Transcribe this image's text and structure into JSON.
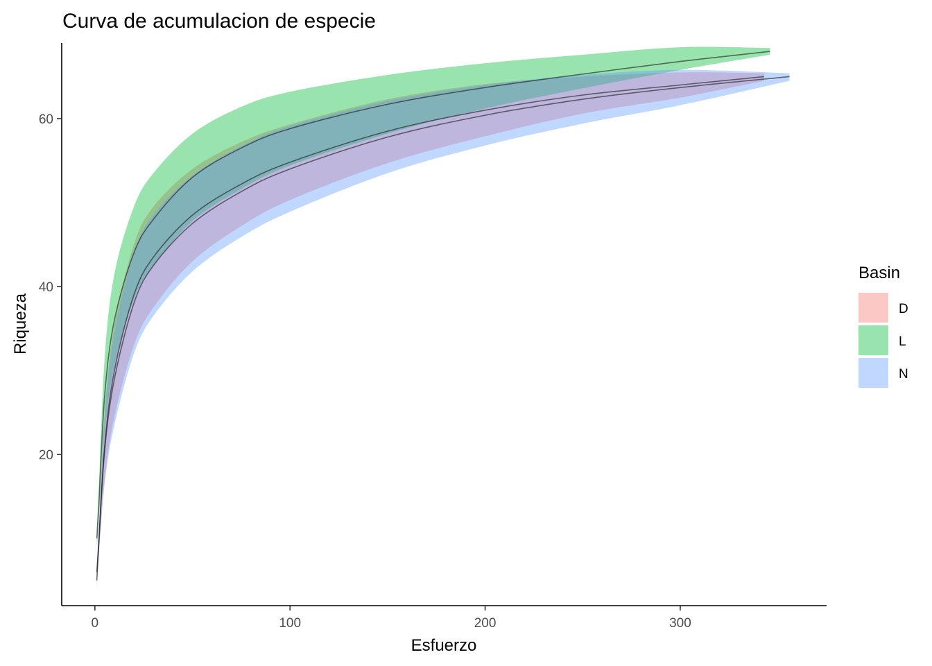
{
  "chart_data": {
    "type": "area",
    "title": "Curva de acumulacion de especie",
    "xlabel": "Esfuerzo",
    "ylabel": "Riqueza",
    "xlim": [
      -17,
      375
    ],
    "ylim": [
      2,
      69
    ],
    "xticks": [
      0,
      100,
      200,
      300
    ],
    "yticks": [
      20,
      40,
      60
    ],
    "grid": false,
    "legend": {
      "title": "Basin",
      "position": "right"
    },
    "series": [
      {
        "name": "D",
        "color": "#F8766D",
        "x": [
          1,
          2,
          5,
          10,
          20,
          30,
          50,
          75,
          100,
          150,
          200,
          250,
          300,
          343
        ],
        "y": [
          5,
          9.5,
          21,
          30,
          39,
          43.5,
          48.5,
          52.2,
          54.8,
          58.5,
          61,
          62.8,
          64,
          65
        ],
        "lower": [
          4,
          8,
          17,
          24.5,
          33,
          37.5,
          43,
          47.2,
          50.3,
          54.7,
          57.9,
          60.6,
          62.5,
          64.5
        ],
        "upper": [
          6,
          11,
          25,
          35.5,
          45,
          49.5,
          54,
          57.2,
          59.3,
          62.3,
          64.1,
          65,
          65.5,
          65.4
        ]
      },
      {
        "name": "L",
        "color": "#00BA38",
        "x": [
          1,
          2,
          5,
          10,
          20,
          30,
          50,
          75,
          100,
          150,
          200,
          250,
          300,
          346
        ],
        "y": [
          10,
          14,
          27,
          36,
          44,
          48,
          53,
          56.5,
          58.8,
          61.7,
          63.7,
          65.3,
          66.8,
          68
        ],
        "lower": [
          9,
          12,
          22.5,
          30.5,
          38.5,
          42.5,
          47.8,
          51.6,
          54.4,
          58.2,
          61.2,
          63.6,
          65.8,
          67.6
        ],
        "upper": [
          11,
          16,
          31.5,
          41.5,
          49.5,
          53.5,
          58.2,
          61.4,
          63.2,
          65.2,
          66.6,
          67.6,
          68.5,
          68.4
        ]
      },
      {
        "name": "N",
        "color": "#619CFF",
        "x": [
          1,
          2,
          5,
          10,
          20,
          30,
          50,
          75,
          100,
          150,
          200,
          250,
          300,
          356
        ],
        "y": [
          6,
          9.5,
          20.5,
          29,
          38,
          42.5,
          47.5,
          51.3,
          54,
          57.8,
          60.4,
          62.3,
          63.7,
          65
        ],
        "lower": [
          5,
          8,
          16.5,
          23.5,
          32,
          36.5,
          41.8,
          45.9,
          48.9,
          53.5,
          56.8,
          59.4,
          61.6,
          64.5
        ],
        "upper": [
          7,
          11,
          24.5,
          34.5,
          44,
          48.5,
          53.2,
          56.7,
          59.1,
          62.1,
          64,
          65.2,
          65.8,
          65.4
        ]
      }
    ]
  }
}
